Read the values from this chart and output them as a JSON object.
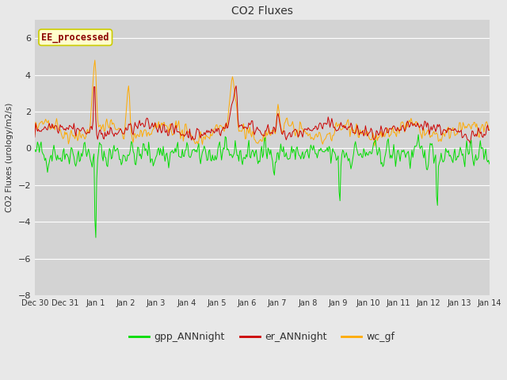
{
  "title": "CO2 Fluxes",
  "ylabel": "CO2 Fluxes (urology/m2/s)",
  "ylim": [
    -8,
    7
  ],
  "yticks": [
    -8,
    -6,
    -4,
    -2,
    0,
    2,
    4,
    6
  ],
  "fig_bg_color": "#e8e8e8",
  "plot_bg_color": "#d3d3d3",
  "annotation_text": "EE_processed",
  "annotation_color": "#8b0000",
  "annotation_bg": "#ffffcc",
  "legend_entries": [
    "gpp_ANNnight",
    "er_ANNnight",
    "wc_gf"
  ],
  "line_colors": [
    "#00dd00",
    "#cc0000",
    "#ffaa00"
  ],
  "n_points": 500,
  "seed": 42
}
